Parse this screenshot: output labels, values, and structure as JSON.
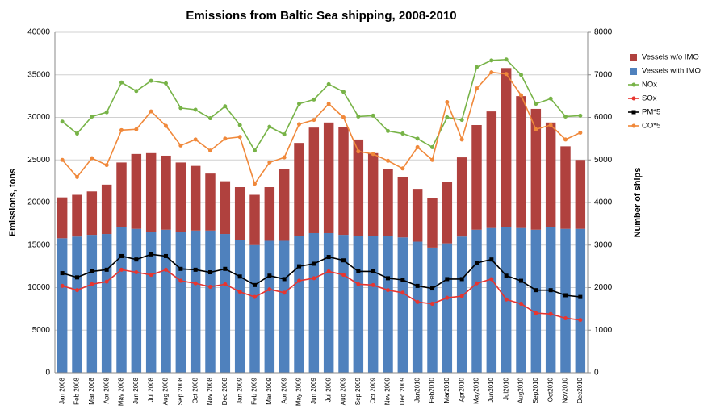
{
  "chart_data": {
    "type": "bar",
    "title": "Emissions from Baltic Sea shipping, 2008-2010",
    "y_label": "Emissions, tons",
    "y2_label": "Number of ships",
    "categories": [
      "Jan 2008",
      "Feb 2008",
      "Mar 2008",
      "Apr 2008",
      "May 2008",
      "Jun 2008",
      "Jul 2008",
      "Aug 2008",
      "Sep 2008",
      "Oct 2008",
      "Nov 2008",
      "Dec 2008",
      "Jan 2009",
      "Feb 2009",
      "Mar 2009",
      "Apr 2009",
      "May 2009",
      "Jun 2009",
      "Jul 2009",
      "Aug 2009",
      "Sep 2009",
      "Oct 2009",
      "Nov 2009",
      "Dec 2009",
      "Jan2010",
      "Feb2010",
      "Mar2010",
      "Apr2010",
      "May2010",
      "Jun2010",
      "Jul2010",
      "Aug2010",
      "Sep2010",
      "Oct2010",
      "Nov2010",
      "Dec2010"
    ],
    "ylim": [
      0,
      40000
    ],
    "yticks": [
      0,
      5000,
      10000,
      15000,
      20000,
      25000,
      30000,
      35000,
      40000
    ],
    "y2lim": [
      0,
      8000
    ],
    "y2ticks": [
      0,
      1000,
      2000,
      3000,
      4000,
      5000,
      6000,
      7000,
      8000
    ],
    "grid": true,
    "stacked": true,
    "legend": "right",
    "series": [
      {
        "name": "Vessels w/o IMO",
        "type": "bar",
        "axis": "y2",
        "color": "#b0413e",
        "values": [
          960,
          980,
          1020,
          1160,
          1520,
          1760,
          1860,
          1740,
          1640,
          1520,
          1340,
          1240,
          1240,
          1180,
          1260,
          1680,
          2180,
          2480,
          2600,
          2540,
          2260,
          1940,
          1560,
          1420,
          1240,
          1160,
          1440,
          1860,
          2460,
          2740,
          3740,
          3100,
          2840,
          2460,
          1940,
          1620
        ]
      },
      {
        "name": "Vessels with IMO",
        "type": "bar",
        "axis": "y2",
        "color": "#4f81bd",
        "values": [
          3160,
          3200,
          3240,
          3260,
          3420,
          3380,
          3300,
          3360,
          3300,
          3340,
          3340,
          3260,
          3120,
          3000,
          3100,
          3100,
          3220,
          3280,
          3280,
          3240,
          3220,
          3220,
          3220,
          3180,
          3080,
          2940,
          3040,
          3200,
          3360,
          3400,
          3420,
          3400,
          3360,
          3420,
          3380,
          3380
        ]
      },
      {
        "name": "NOx",
        "type": "line",
        "color": "#77b347",
        "marker": "circle",
        "values": [
          29500,
          28100,
          30100,
          30600,
          34100,
          33100,
          34300,
          34000,
          31100,
          30900,
          29900,
          31300,
          29100,
          26100,
          28900,
          28000,
          31600,
          32100,
          33900,
          33000,
          30100,
          30200,
          28400,
          28100,
          27500,
          26500,
          30000,
          29700,
          35900,
          36700,
          36800,
          35000,
          31600,
          32200,
          30100,
          30200
        ]
      },
      {
        "name": "SOx",
        "type": "line",
        "color": "#e8352f",
        "marker": "circle",
        "values": [
          10200,
          9700,
          10400,
          10700,
          12100,
          11800,
          11500,
          12100,
          10800,
          10500,
          10100,
          10400,
          9500,
          8900,
          9800,
          9400,
          10800,
          11100,
          11900,
          11500,
          10400,
          10300,
          9700,
          9400,
          8300,
          8100,
          8800,
          9000,
          10500,
          11000,
          8600,
          8100,
          7000,
          6900,
          6400,
          6200
        ]
      },
      {
        "name": "PM*5",
        "type": "line",
        "color": "#000000",
        "marker": "square",
        "values": [
          11700,
          11200,
          11900,
          12100,
          13700,
          13300,
          13900,
          13700,
          12200,
          12100,
          11800,
          12200,
          11300,
          10300,
          11400,
          11000,
          12500,
          12800,
          13600,
          13200,
          11900,
          11900,
          11100,
          10900,
          10200,
          9900,
          11000,
          11000,
          12900,
          13300,
          11400,
          10800,
          9700,
          9700,
          9100,
          8900
        ]
      },
      {
        "name": "CO*5",
        "type": "line",
        "color": "#f0883a",
        "marker": "circle",
        "values": [
          25000,
          23000,
          25200,
          24400,
          28500,
          28600,
          30700,
          29000,
          26700,
          27400,
          26100,
          27500,
          27700,
          22200,
          24700,
          25300,
          29200,
          29700,
          31600,
          30000,
          26000,
          25700,
          24900,
          24000,
          26500,
          25000,
          31800,
          27400,
          33400,
          35300,
          35100,
          32600,
          28600,
          29100,
          27400,
          28200
        ]
      }
    ]
  }
}
